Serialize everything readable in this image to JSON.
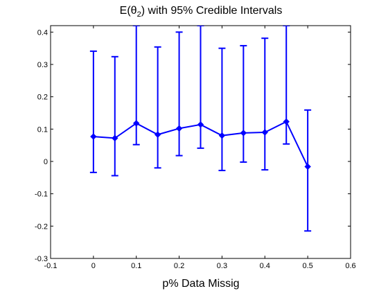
{
  "chart_data": {
    "type": "line",
    "title_main": "E(θ",
    "title_sub": "2",
    "title_rest": ") with 95% Credible Intervals",
    "xlabel": "p% Data Missig",
    "ylabel": "",
    "xlim": [
      -0.1,
      0.6
    ],
    "ylim": [
      -0.3,
      0.42
    ],
    "x_ticks": [
      -0.1,
      0,
      0.1,
      0.2,
      0.3,
      0.4,
      0.5,
      0.6
    ],
    "y_ticks": [
      -0.3,
      -0.2,
      -0.1,
      0,
      0.1,
      0.2,
      0.3,
      0.4
    ],
    "x_tick_labels": [
      "-0.1",
      "0",
      "0.1",
      "0.2",
      "0.3",
      "0.4",
      "0.5",
      "0.6"
    ],
    "y_tick_labels": [
      "-0.3",
      "-0.2",
      "-0.1",
      "0",
      "0.1",
      "0.2",
      "0.3",
      "0.4"
    ],
    "grid": false,
    "color": "#0000ff",
    "marker": "diamond",
    "series": [
      {
        "x": [
          0,
          0.05,
          0.1,
          0.15,
          0.2,
          0.25,
          0.3,
          0.35,
          0.4,
          0.45,
          0.5
        ],
        "y": [
          0.077,
          0.072,
          0.118,
          0.083,
          0.102,
          0.114,
          0.08,
          0.088,
          0.09,
          0.123,
          -0.016
        ],
        "lower": [
          -0.034,
          -0.044,
          0.052,
          -0.02,
          0.018,
          0.041,
          -0.028,
          -0.002,
          -0.026,
          0.054,
          -0.215
        ],
        "upper": [
          0.341,
          0.324,
          0.42,
          0.354,
          0.4,
          0.42,
          0.35,
          0.358,
          0.381,
          0.42,
          0.159
        ]
      }
    ]
  }
}
